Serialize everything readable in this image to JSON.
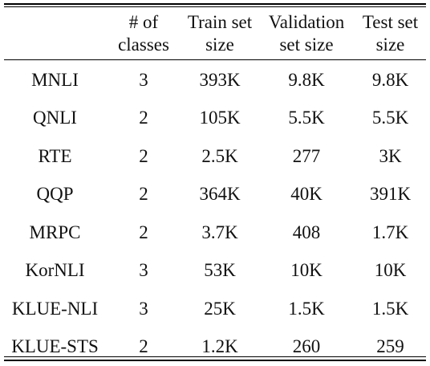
{
  "header": {
    "col0": "",
    "col1": [
      "# of",
      "classes"
    ],
    "col2": [
      "Train set",
      "size"
    ],
    "col3": [
      "Validation",
      "set size"
    ],
    "col4": [
      "Test set",
      "size"
    ]
  },
  "rows": [
    {
      "dataset": "MNLI",
      "classes": "3",
      "train": "393K",
      "validation": "9.8K",
      "test": "9.8K"
    },
    {
      "dataset": "QNLI",
      "classes": "2",
      "train": "105K",
      "validation": "5.5K",
      "test": "5.5K"
    },
    {
      "dataset": "RTE",
      "classes": "2",
      "train": "2.5K",
      "validation": "277",
      "test": "3K"
    },
    {
      "dataset": "QQP",
      "classes": "2",
      "train": "364K",
      "validation": "40K",
      "test": "391K"
    },
    {
      "dataset": "MRPC",
      "classes": "2",
      "train": "3.7K",
      "validation": "408",
      "test": "1.7K"
    },
    {
      "dataset": "KorNLI",
      "classes": "3",
      "train": "53K",
      "validation": "10K",
      "test": "10K"
    },
    {
      "dataset": "KLUE-NLI",
      "classes": "3",
      "train": "25K",
      "validation": "1.5K",
      "test": "1.5K"
    },
    {
      "dataset": "KLUE-STS",
      "classes": "2",
      "train": "1.2K",
      "validation": "260",
      "test": "259"
    }
  ]
}
